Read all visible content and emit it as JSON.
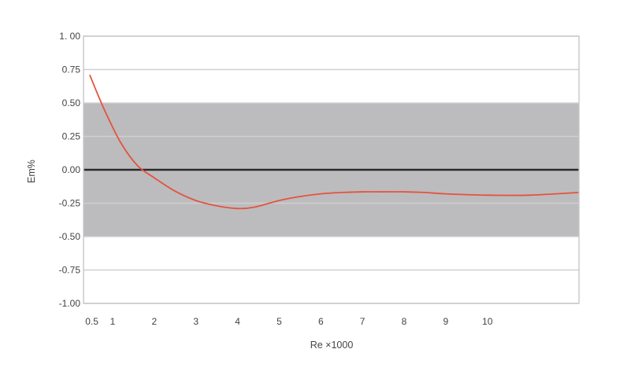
{
  "chart_data": {
    "type": "line",
    "title": "",
    "xlabel": "Re ×1000",
    "ylabel": "Em%",
    "ylim": [
      -1.0,
      1.0
    ],
    "xlim": [
      0.3,
      12.2
    ],
    "grid": true,
    "band": {
      "from": -0.5,
      "to": 0.5,
      "color": "#bcbcbe"
    },
    "zero_line": true,
    "y_tick_labels": [
      "1. 00",
      "0.75",
      "0.50",
      "0.25",
      "0.00",
      "-0.25",
      "-0.50",
      "-0.75",
      "-1.00"
    ],
    "y_tick_values": [
      1.0,
      0.75,
      0.5,
      0.25,
      0.0,
      -0.25,
      -0.5,
      -0.75,
      -1.0
    ],
    "x_ticks": [
      {
        "label": "0.5",
        "value": 0.5
      },
      {
        "label": "1",
        "value": 1
      },
      {
        "label": "2",
        "value": 2
      },
      {
        "label": "3",
        "value": 3
      },
      {
        "label": "4",
        "value": 4
      },
      {
        "label": "5",
        "value": 5
      },
      {
        "label": "6",
        "value": 6
      },
      {
        "label": "7",
        "value": 7
      },
      {
        "label": "8",
        "value": 8
      },
      {
        "label": "9",
        "value": 9
      },
      {
        "label": "10",
        "value": 10
      }
    ],
    "series": [
      {
        "color": "#e4533e",
        "x": [
          0.45,
          0.8,
          1.2,
          1.6,
          2.0,
          2.5,
          3.0,
          3.5,
          4.0,
          4.4,
          5.0,
          5.5,
          6.0,
          6.5,
          7.0,
          7.5,
          8.0,
          8.5,
          9.0,
          10.0,
          11.0,
          12.2
        ],
        "y": [
          0.71,
          0.45,
          0.2,
          0.03,
          -0.06,
          -0.16,
          -0.23,
          -0.27,
          -0.29,
          -0.28,
          -0.23,
          -0.2,
          -0.18,
          -0.17,
          -0.165,
          -0.165,
          -0.165,
          -0.17,
          -0.18,
          -0.19,
          -0.19,
          -0.17
        ]
      }
    ]
  },
  "colors": {
    "band": "#bcbcbe",
    "grid": "#d0d0d0",
    "zero_line": "#2a2a2a",
    "frame": "#c8c8c8",
    "curve": "#e4533e"
  }
}
